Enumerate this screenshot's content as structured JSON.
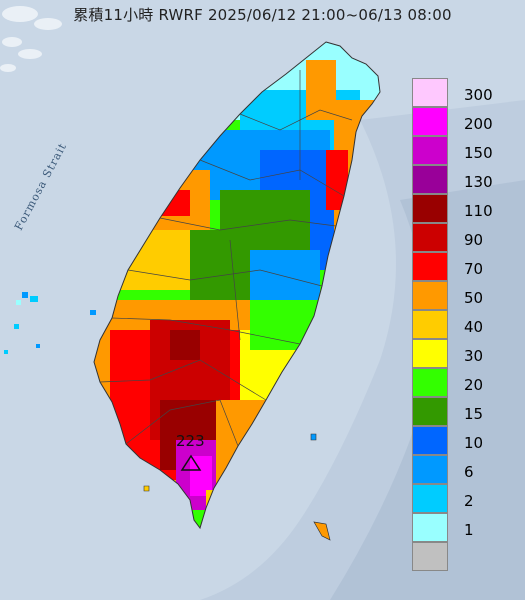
{
  "title": "累積11小時 RWRF 2025/06/12 21:00~06/13 08:00",
  "strait_label": "Formosa Strait",
  "peak": {
    "value": "223",
    "icon": "triangle-marker-icon"
  },
  "legend": [
    {
      "label": "300",
      "color": "#fec8fe"
    },
    {
      "label": "200",
      "color": "#ff00ff"
    },
    {
      "label": "150",
      "color": "#cc00cc"
    },
    {
      "label": "130",
      "color": "#990099"
    },
    {
      "label": "110",
      "color": "#990000"
    },
    {
      "label": "90",
      "color": "#cc0000"
    },
    {
      "label": "70",
      "color": "#ff0000"
    },
    {
      "label": "50",
      "color": "#ff9900"
    },
    {
      "label": "40",
      "color": "#ffcc00"
    },
    {
      "label": "30",
      "color": "#ffff00"
    },
    {
      "label": "20",
      "color": "#33ff00"
    },
    {
      "label": "15",
      "color": "#339900"
    },
    {
      "label": "10",
      "color": "#0066ff"
    },
    {
      "label": "6",
      "color": "#0099ff"
    },
    {
      "label": "2",
      "color": "#00ccff"
    },
    {
      "label": "1",
      "color": "#99ffff"
    },
    {
      "label": "",
      "color": "#c0c0c0"
    }
  ],
  "colors": {
    "sea": "#c9d7e6",
    "sea_shade": "#aebfd2",
    "border": "#333333"
  }
}
